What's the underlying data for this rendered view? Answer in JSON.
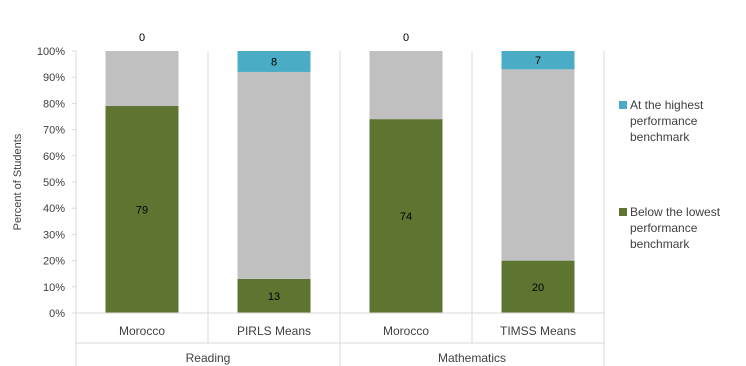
{
  "chart_data": {
    "type": "bar",
    "stacked": true,
    "ylabel": "Percent of Students",
    "y_ticks": [
      "0%",
      "10%",
      "20%",
      "30%",
      "40%",
      "50%",
      "60%",
      "70%",
      "80%",
      "90%",
      "100%"
    ],
    "ylim": [
      0,
      100
    ],
    "grid": false,
    "legend_position": "right",
    "groups": [
      {
        "label": "Reading",
        "categories": [
          "Morocco",
          "PIRLS Means"
        ]
      },
      {
        "label": "Mathematics",
        "categories": [
          "Morocco",
          "TIMSS Means"
        ]
      }
    ],
    "categories": [
      "Morocco",
      "PIRLS Means",
      "Morocco",
      "TIMSS Means"
    ],
    "series": [
      {
        "name": "Below the lowest performance benchmark",
        "values": [
          79,
          13,
          74,
          20
        ],
        "labels": [
          "79",
          "13",
          "74",
          "20"
        ],
        "color": "#5e7532"
      },
      {
        "values": [
          21,
          79,
          26,
          73
        ],
        "color": "#c0c0c0"
      },
      {
        "name": "At the highest performance benchmark",
        "values": [
          0,
          8,
          0,
          7
        ],
        "labels": [
          "0",
          "8",
          "0",
          "7"
        ],
        "color": "#4bacc6"
      }
    ]
  }
}
